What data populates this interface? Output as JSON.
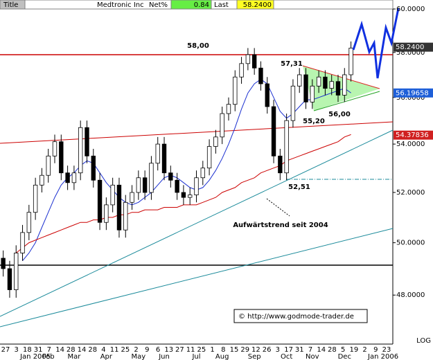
{
  "chart_data": {
    "type": "candlestick",
    "header": {
      "tab": "Title",
      "name": "Medtronic Inc",
      "net_label": "Net%",
      "net_value": 0.84,
      "last_label": "Last",
      "last_value": {
        "value": 58.24,
        "label": "58.2400"
      }
    },
    "log_scale": true,
    "scale_label": "LOG",
    "ylim": [
      46.2,
      60
    ],
    "yticks": [
      {
        "value": 60,
        "label": "60.0000"
      },
      {
        "value": 58,
        "label": "58.0000"
      },
      {
        "value": 56,
        "label": "56.0000"
      },
      {
        "value": 54,
        "label": "54.0000"
      },
      {
        "value": 52,
        "label": "52.0000"
      },
      {
        "value": 50,
        "label": "50.0000"
      },
      {
        "value": 48,
        "label": "48.0000"
      }
    ],
    "categories": [
      null,
      null,
      null,
      null,
      null,
      "Jan 2005",
      null,
      "Feb",
      null,
      null,
      null,
      "Mar",
      null,
      null,
      null,
      null,
      "Apr",
      null,
      null,
      null,
      null,
      "May",
      null,
      null,
      null,
      "Jun",
      null,
      null,
      null,
      null,
      "Jul",
      null,
      null,
      null,
      "Aug",
      null,
      null,
      null,
      null,
      "Sep",
      null,
      null,
      null,
      null,
      "Oct",
      null,
      null,
      null,
      "Nov",
      null,
      null,
      null,
      null,
      "Dec",
      null,
      null,
      null,
      null,
      null,
      "Jan 2006",
      null
    ],
    "day_labels": [
      "27",
      "3",
      "18",
      "31",
      "7",
      "14",
      "28",
      "14",
      "28",
      "4",
      "11",
      "25",
      "2",
      "9",
      "6",
      "13",
      "27",
      "11",
      "25",
      "1",
      "8",
      "15",
      "29",
      "12",
      "26",
      "3",
      "17",
      "31",
      "7",
      "14",
      "28",
      "5",
      "19",
      "2",
      "9",
      "23"
    ],
    "open": [
      49.4,
      49.0,
      48.2,
      49.6,
      50.4,
      51.2,
      52.3,
      52.7,
      53.5,
      54.1,
      52.8,
      52.4,
      52.8,
      54.7,
      53.5,
      52.5,
      50.8,
      51.5,
      52.3,
      50.5,
      51.6,
      52.0,
      52.6,
      52.0,
      53.2,
      54.0,
      52.8,
      52.5,
      52.0,
      51.8,
      51.9,
      52.6,
      53.0,
      53.9,
      54.3,
      55.3,
      55.7,
      56.9,
      57.5,
      57.9,
      57.3,
      56.6,
      55.6,
      53.5,
      52.8,
      55.0,
      56.5,
      57.0,
      55.8,
      56.5,
      56.9,
      56.4,
      56.7,
      56.1,
      57.0,
      null,
      null,
      null,
      null,
      null,
      null
    ],
    "high": [
      49.7,
      49.3,
      49.9,
      50.7,
      51.5,
      52.6,
      53.0,
      53.8,
      54.4,
      54.4,
      53.1,
      53.1,
      55.0,
      55.0,
      53.8,
      52.8,
      51.8,
      52.6,
      52.6,
      51.9,
      52.3,
      52.9,
      52.9,
      53.5,
      54.3,
      54.3,
      53.1,
      52.8,
      52.3,
      52.2,
      52.9,
      53.3,
      54.2,
      54.6,
      55.6,
      56.0,
      57.2,
      57.8,
      58.2,
      58.2,
      57.6,
      56.9,
      55.9,
      53.8,
      55.3,
      56.8,
      57.3,
      57.3,
      56.8,
      57.2,
      57.2,
      57.0,
      57.0,
      57.3,
      58.5,
      null,
      null,
      null,
      null,
      null,
      null
    ],
    "low": [
      48.7,
      47.9,
      47.9,
      49.3,
      50.1,
      50.9,
      52.0,
      52.4,
      53.2,
      52.5,
      52.1,
      52.1,
      52.5,
      53.2,
      52.2,
      50.5,
      50.5,
      51.2,
      50.2,
      50.2,
      51.3,
      51.7,
      51.7,
      51.7,
      52.9,
      52.5,
      52.2,
      51.7,
      51.5,
      51.5,
      51.6,
      52.3,
      52.7,
      53.6,
      54.0,
      55.0,
      55.4,
      56.6,
      57.2,
      57.0,
      56.3,
      55.3,
      53.2,
      52.5,
      52.5,
      54.7,
      56.2,
      55.5,
      55.5,
      56.2,
      56.1,
      56.1,
      55.8,
      55.8,
      56.7,
      null,
      null,
      null,
      null,
      null,
      null
    ],
    "close": [
      49.0,
      48.2,
      49.6,
      50.4,
      51.2,
      52.3,
      52.7,
      53.5,
      54.1,
      52.8,
      52.4,
      52.8,
      54.7,
      53.5,
      52.5,
      50.8,
      51.5,
      52.3,
      50.5,
      51.6,
      52.0,
      52.6,
      52.0,
      53.2,
      54.0,
      52.8,
      52.5,
      52.0,
      51.8,
      51.9,
      52.6,
      53.0,
      53.9,
      54.3,
      55.3,
      55.7,
      56.9,
      57.5,
      57.9,
      57.3,
      56.6,
      55.6,
      53.5,
      52.8,
      55.0,
      56.5,
      57.0,
      55.8,
      56.5,
      56.9,
      56.4,
      56.7,
      56.1,
      57.0,
      58.2,
      null,
      null,
      null,
      null,
      null,
      null
    ],
    "up_color": "#ffffff",
    "down_color": "#000000",
    "overlays": [
      {
        "color": "#1a2fd0",
        "values": [
          null,
          null,
          null,
          49.3,
          49.6,
          50.0,
          50.6,
          51.2,
          51.8,
          52.3,
          52.6,
          52.8,
          53.1,
          53.3,
          53.2,
          52.8,
          52.4,
          52.1,
          51.8,
          51.6,
          51.5,
          51.6,
          51.8,
          52.0,
          52.3,
          52.6,
          52.7,
          52.6,
          52.4,
          52.2,
          52.1,
          52.2,
          52.5,
          52.9,
          53.4,
          54.0,
          54.7,
          55.5,
          56.2,
          56.6,
          56.8,
          56.6,
          56.0,
          55.4,
          55.1,
          55.3,
          55.6,
          55.9,
          55.9,
          56.0,
          56.1,
          56.2,
          56.3,
          56.4,
          56.2,
          null,
          null,
          null,
          null,
          null,
          null
        ]
      },
      {
        "color": "#cc0000",
        "values": [
          null,
          null,
          49.6,
          49.8,
          50.0,
          50.1,
          50.2,
          50.3,
          50.4,
          50.5,
          50.6,
          50.7,
          50.8,
          50.8,
          50.9,
          50.9,
          51.0,
          51.0,
          51.1,
          51.1,
          51.2,
          51.2,
          51.3,
          51.3,
          51.3,
          51.4,
          51.4,
          51.4,
          51.5,
          51.5,
          51.5,
          51.6,
          51.7,
          51.8,
          52.0,
          52.1,
          52.2,
          52.4,
          52.5,
          52.6,
          52.8,
          52.9,
          53.0,
          53.1,
          53.3,
          53.4,
          53.5,
          53.6,
          53.7,
          53.8,
          53.9,
          54.0,
          54.1,
          54.3,
          54.4,
          null,
          null,
          null,
          null,
          null,
          null
        ]
      }
    ],
    "price_markers": [
      {
        "value": 58.24,
        "label": "58.2400",
        "color": "#333333"
      },
      {
        "value": 56.19658,
        "label": "56.19658",
        "color": "#1e5fd8"
      },
      {
        "value": 54.37836,
        "label": "54.37836",
        "color": "#d02020"
      }
    ],
    "annotations": [
      "58,00",
      "57,31",
      "55,20",
      "56,00",
      "52,51",
      "Aufwärtstrend seit 2004"
    ],
    "source": "© http://www.godmode-trader.de"
  }
}
